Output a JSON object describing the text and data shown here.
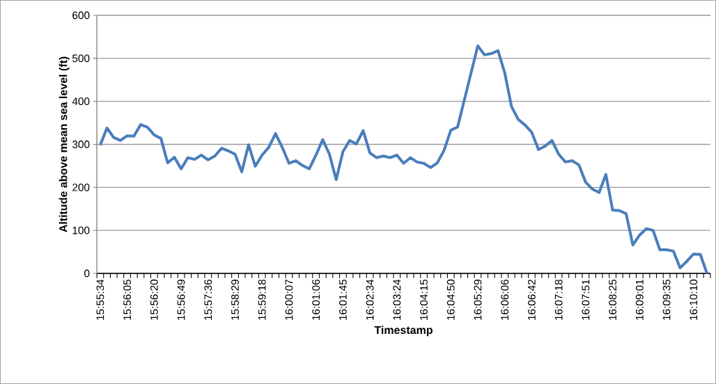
{
  "chart_data": {
    "type": "line",
    "xlabel": "Timestamp",
    "ylabel": "Altitude above mean sea level (ft)",
    "categories": [
      "15:55:34",
      null,
      null,
      null,
      "15:56:05",
      null,
      null,
      null,
      "15:56:20",
      null,
      null,
      null,
      "15:56:49",
      null,
      null,
      null,
      "15:57:36",
      null,
      null,
      null,
      "15:58:29",
      null,
      null,
      null,
      "15:59:18",
      null,
      null,
      null,
      "16:00:07",
      null,
      null,
      null,
      "16:01:06",
      null,
      null,
      null,
      "16:01:45",
      null,
      null,
      null,
      "16:02:34",
      null,
      null,
      null,
      "16:03:24",
      null,
      null,
      null,
      "16:04:15",
      null,
      null,
      null,
      "16:04:50",
      null,
      null,
      null,
      "16:05:29",
      null,
      null,
      null,
      "16:06:06",
      null,
      null,
      null,
      "16:06:42",
      null,
      null,
      null,
      "16:07:18",
      null,
      null,
      null,
      "16:07:51",
      null,
      null,
      null,
      "16:08:25",
      null,
      null,
      null,
      "16:09:01",
      null,
      null,
      null,
      "16:09:35",
      null,
      null,
      null,
      "16:10:10",
      null,
      null
    ],
    "values": [
      298,
      338,
      316,
      309,
      320,
      319,
      346,
      340,
      322,
      314,
      257,
      270,
      243,
      269,
      265,
      275,
      264,
      273,
      291,
      285,
      277,
      236,
      299,
      249,
      275,
      293,
      325,
      293,
      256,
      262,
      251,
      243,
      275,
      311,
      277,
      218,
      283,
      309,
      301,
      332,
      280,
      269,
      273,
      269,
      275,
      256,
      269,
      259,
      256,
      246,
      257,
      286,
      333,
      340,
      403,
      466,
      529,
      508,
      511,
      518,
      466,
      388,
      358,
      345,
      328,
      288,
      296,
      309,
      277,
      259,
      262,
      252,
      212,
      196,
      188,
      230,
      147,
      146,
      139,
      66,
      89,
      104,
      100,
      55,
      55,
      52,
      13,
      28,
      45,
      44,
      0
    ],
    "color": "#4a7ebb",
    "ylim": [
      0,
      600
    ],
    "yticks": [
      0,
      100,
      200,
      300,
      400,
      500,
      600
    ],
    "grid": "y",
    "line_style": "solid"
  }
}
